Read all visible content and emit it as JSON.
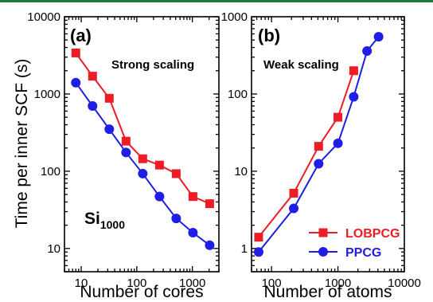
{
  "colors": {
    "top_bar": "#1a7a3a",
    "lobpcg": "#ee1c24",
    "ppcg": "#1e1ee6"
  },
  "y_axis_label": "Time per inner SCF (s)",
  "chart_data": [
    {
      "type": "line",
      "panel_label": "(a)",
      "annotation": "Strong scaling",
      "system_label": "Si",
      "system_sub": "1000",
      "xlabel": "Number of cores",
      "ylabel": "Time per inner SCF (s)",
      "xscale": "log",
      "yscale": "log",
      "xlim": [
        5,
        3000
      ],
      "ylim": [
        5,
        10000
      ],
      "xticks": [
        10,
        100,
        1000
      ],
      "xtick_labels": [
        "10",
        "100",
        "1000"
      ],
      "yticks": [
        10,
        100,
        1000,
        10000
      ],
      "ytick_labels": [
        "10",
        "100",
        "1000",
        "10000"
      ],
      "series": [
        {
          "name": "LOBPCG",
          "marker": "square",
          "x": [
            8,
            16,
            32,
            64,
            128,
            256,
            512,
            1024,
            2048
          ],
          "y": [
            3400,
            1700,
            880,
            245,
            145,
            120,
            93,
            47,
            38
          ]
        },
        {
          "name": "PPCG",
          "marker": "circle",
          "x": [
            8,
            16,
            32,
            64,
            128,
            256,
            512,
            1024,
            2048
          ],
          "y": [
            1400,
            700,
            350,
            175,
            93,
            47,
            24.5,
            16,
            11
          ]
        }
      ]
    },
    {
      "type": "line",
      "panel_label": "(b)",
      "annotation": "Weak scaling",
      "xlabel": "Number of atoms",
      "xscale": "log",
      "yscale": "log",
      "xlim": [
        50,
        10000
      ],
      "ylim": [
        0.5,
        1000
      ],
      "xticks": [
        100,
        1000,
        10000
      ],
      "xtick_labels": [
        "100",
        "1000",
        "10000"
      ],
      "yticks": [
        1,
        10,
        100,
        1000
      ],
      "ytick_labels": [
        "1",
        "10",
        "100",
        "1000"
      ],
      "legend_position": "bottom-right",
      "series": [
        {
          "name": "LOBPCG",
          "marker": "square",
          "x": [
            64,
            216,
            512,
            1000,
            1728
          ],
          "y": [
            1.4,
            5.2,
            21,
            50,
            200
          ]
        },
        {
          "name": "PPCG",
          "marker": "circle",
          "x": [
            64,
            216,
            512,
            1000,
            1728,
            2744,
            4096
          ],
          "y": [
            0.9,
            3.3,
            12.5,
            23,
            92,
            360,
            550
          ]
        }
      ]
    }
  ]
}
